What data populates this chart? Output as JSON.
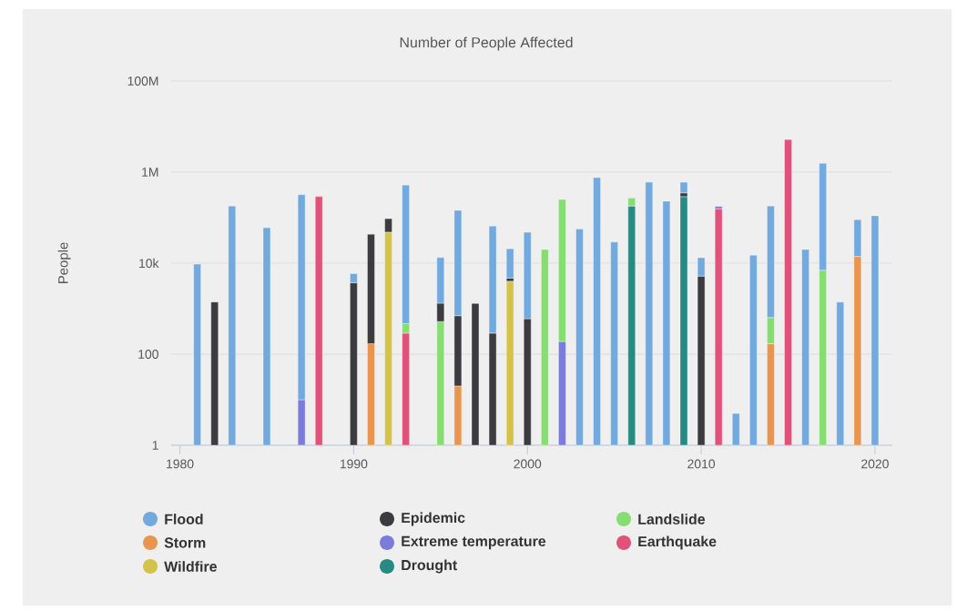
{
  "chart_data": {
    "type": "bar",
    "stacked": true,
    "title": "Number of People Affected",
    "ylabel": "People",
    "log": true,
    "grid": "y",
    "legend": "bottom",
    "x": [
      1981,
      1982,
      1983,
      1985,
      1987,
      1988,
      1990,
      1991,
      1992,
      1993,
      1995,
      1996,
      1997,
      1998,
      1999,
      2000,
      2001,
      2002,
      2003,
      2004,
      2005,
      2006,
      2007,
      2008,
      2009,
      2010,
      2011,
      2012,
      2013,
      2014,
      2015,
      2016,
      2017,
      2018,
      2019,
      2020
    ],
    "xlim": [
      1979.5,
      2021
    ],
    "xticks": [
      1980,
      1990,
      2000,
      2010,
      2020
    ],
    "ylim": [
      1,
      100000000
    ],
    "yticks": [
      1,
      100,
      {
        "value": 10000,
        "label": "10k"
      },
      {
        "value": 1000000,
        "label": "1M"
      },
      {
        "value": 100000000,
        "label": "100M"
      }
    ],
    "series": [
      {
        "name": "Drought",
        "color": "#278a83",
        "values": [
          null,
          null,
          null,
          null,
          null,
          null,
          null,
          null,
          null,
          null,
          null,
          null,
          null,
          null,
          null,
          null,
          null,
          null,
          null,
          null,
          null,
          180000,
          null,
          null,
          290000,
          null,
          null,
          null,
          null,
          null,
          null,
          null,
          null,
          null,
          null,
          null
        ]
      },
      {
        "name": "Wildfire",
        "color": "#d4c24a",
        "values": [
          null,
          null,
          null,
          null,
          null,
          null,
          null,
          null,
          48000,
          null,
          null,
          null,
          null,
          null,
          4000,
          null,
          null,
          null,
          null,
          null,
          null,
          null,
          null,
          null,
          null,
          null,
          null,
          null,
          null,
          null,
          null,
          null,
          null,
          null,
          null,
          null
        ]
      },
      {
        "name": "Earthquake",
        "color": "#e0527a",
        "values": [
          null,
          null,
          null,
          null,
          null,
          290000,
          null,
          null,
          null,
          290,
          null,
          null,
          null,
          null,
          null,
          null,
          null,
          null,
          null,
          null,
          null,
          null,
          null,
          null,
          null,
          null,
          156000,
          null,
          null,
          null,
          5200000,
          null,
          null,
          null,
          null,
          null
        ]
      },
      {
        "name": "Extreme temperature",
        "color": "#7b7bdc",
        "values": [
          null,
          null,
          null,
          null,
          10,
          null,
          null,
          null,
          null,
          null,
          null,
          null,
          null,
          null,
          null,
          null,
          null,
          190,
          null,
          null,
          null,
          null,
          null,
          null,
          null,
          null,
          20000,
          null,
          null,
          null,
          null,
          null,
          null,
          null,
          null,
          null
        ]
      },
      {
        "name": "Storm",
        "color": "#e8964f",
        "values": [
          null,
          null,
          null,
          null,
          null,
          null,
          null,
          170,
          null,
          null,
          null,
          20,
          null,
          null,
          null,
          null,
          null,
          null,
          null,
          null,
          null,
          null,
          null,
          null,
          null,
          null,
          null,
          null,
          null,
          170,
          null,
          null,
          null,
          null,
          14000,
          null
        ]
      },
      {
        "name": "Landslide",
        "color": "#86dd72",
        "values": [
          null,
          null,
          null,
          null,
          null,
          null,
          null,
          null,
          null,
          180,
          520,
          null,
          null,
          null,
          null,
          null,
          20000,
          250000,
          null,
          null,
          null,
          90000,
          null,
          null,
          null,
          null,
          null,
          null,
          null,
          470,
          null,
          null,
          7000,
          null,
          null,
          null
        ]
      },
      {
        "name": "Epidemic",
        "color": "#3b3b40",
        "values": [
          null,
          1400,
          null,
          null,
          null,
          null,
          3700,
          43000,
          47000,
          null,
          800,
          680,
          1300,
          290,
          700,
          600,
          null,
          null,
          null,
          null,
          null,
          null,
          null,
          null,
          60000,
          5200,
          null,
          null,
          null,
          null,
          null,
          null,
          null,
          null,
          null,
          null
        ]
      },
      {
        "name": "Flood",
        "color": "#72a9de",
        "values": [
          9500,
          null,
          180000,
          60000,
          320000,
          null,
          2200,
          null,
          null,
          520000,
          12000,
          144000,
          null,
          65000,
          16000,
          47000,
          null,
          null,
          56000,
          760000,
          29000,
          null,
          600000,
          230000,
          250000,
          8000,
          null,
          5,
          15000,
          180000,
          null,
          20000,
          1550000,
          1400,
          76000,
          110000
        ]
      }
    ]
  }
}
